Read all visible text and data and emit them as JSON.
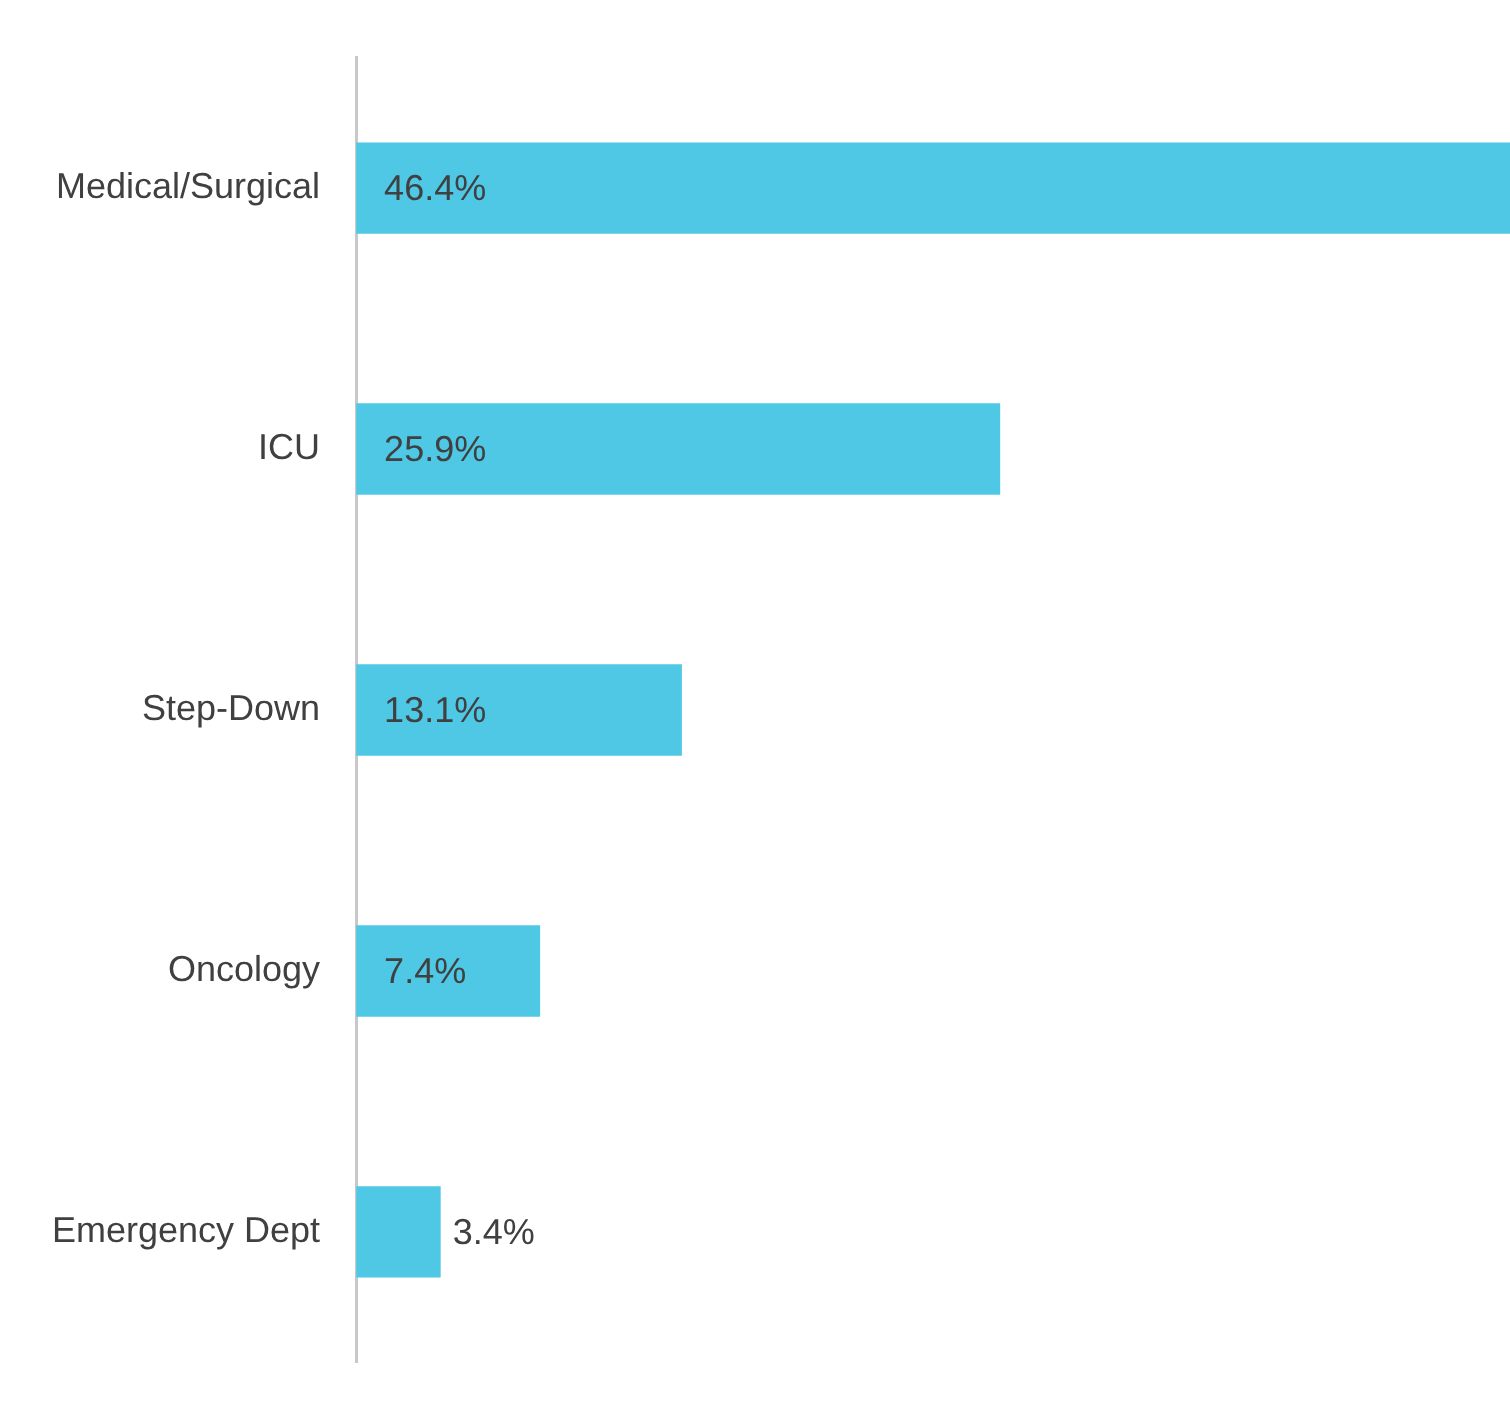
{
  "chart_data": {
    "type": "bar",
    "orientation": "horizontal",
    "categories": [
      "Medical/Surgical",
      "ICU",
      "Step-Down",
      "Oncology",
      "Emergency Dept"
    ],
    "values": [
      46.4,
      25.9,
      13.1,
      7.4,
      3.4
    ],
    "value_labels": [
      "46.4%",
      "25.9%",
      "13.1%",
      "7.4%",
      "3.4%"
    ],
    "color": "#4fc8e6",
    "xlim": [
      0,
      46.4
    ],
    "tick_labels": "y",
    "grid": false,
    "legend": false
  }
}
